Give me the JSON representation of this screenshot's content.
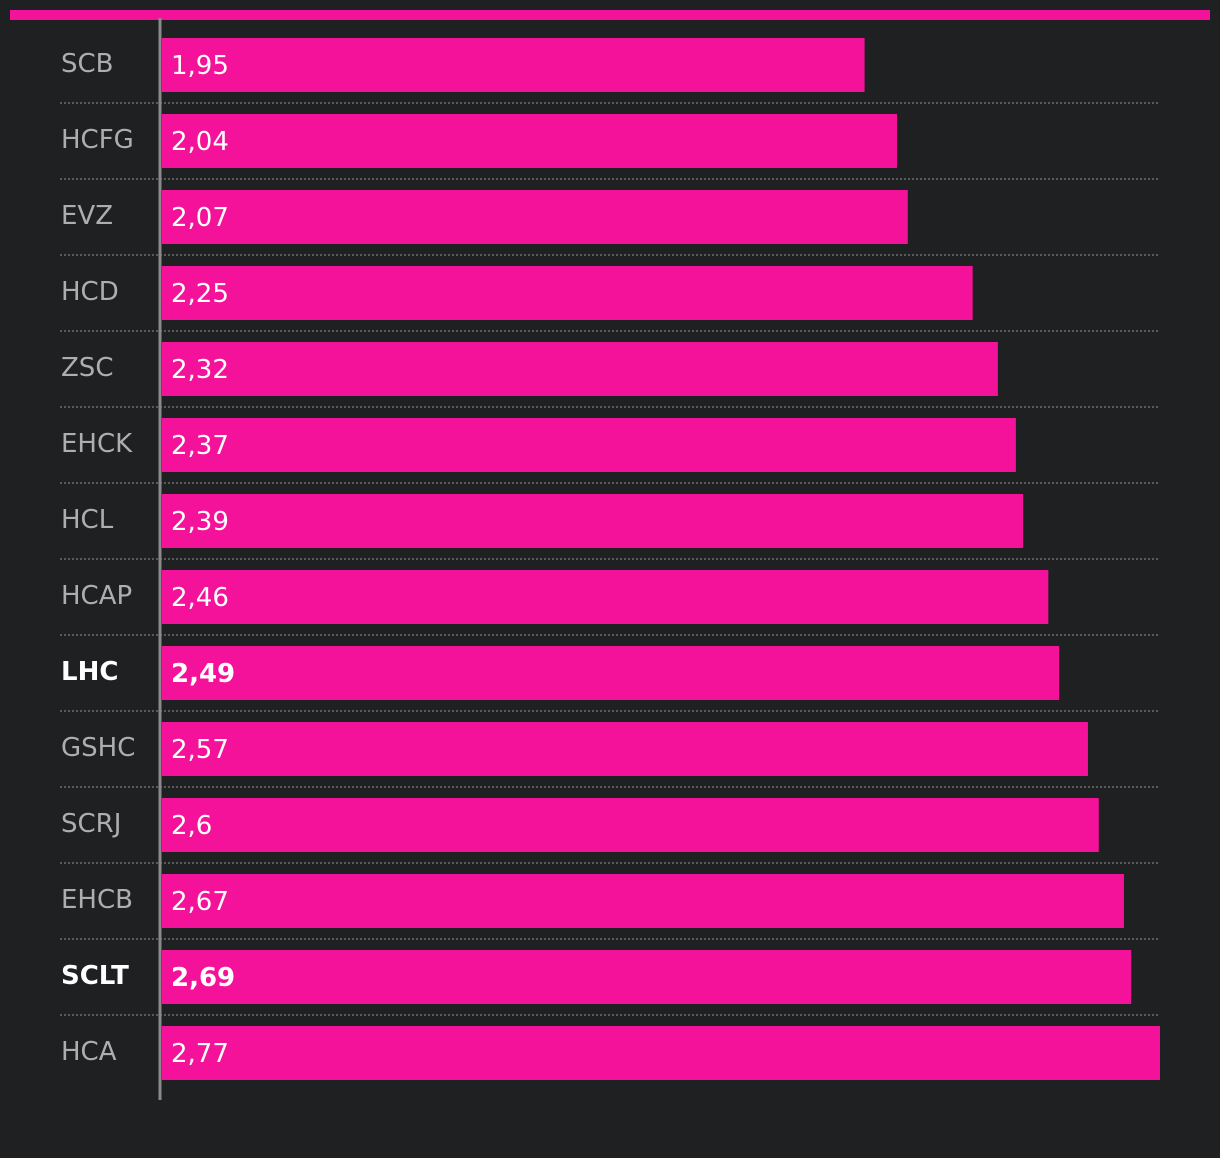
{
  "colors": {
    "background": "#1f2022",
    "accent": "#f5129b",
    "label": "#aeaeb0",
    "label_highlight": "#ffffff",
    "value_text": "#ffffff",
    "axis": "#8a8a8c",
    "divider": "#6e6e70"
  },
  "chart_data": {
    "type": "bar",
    "orientation": "horizontal",
    "categories": [
      "SCB",
      "HCFG",
      "EVZ",
      "HCD",
      "ZSC",
      "EHCK",
      "HCL",
      "HCAP",
      "LHC",
      "GSHC",
      "SCRJ",
      "EHCB",
      "SCLT",
      "HCA"
    ],
    "values": [
      1.95,
      2.04,
      2.07,
      2.25,
      2.32,
      2.37,
      2.39,
      2.46,
      2.49,
      2.57,
      2.6,
      2.67,
      2.69,
      2.77
    ],
    "value_labels": [
      "1,95",
      "2,04",
      "2,07",
      "2,25",
      "2,32",
      "2,37",
      "2,39",
      "2,46",
      "2,49",
      "2,57",
      "2,6",
      "2,67",
      "2,69",
      "2,77"
    ],
    "highlighted": [
      "LHC",
      "SCLT"
    ],
    "xlim": [
      0,
      2.77
    ],
    "grid": false,
    "legend": "none"
  }
}
